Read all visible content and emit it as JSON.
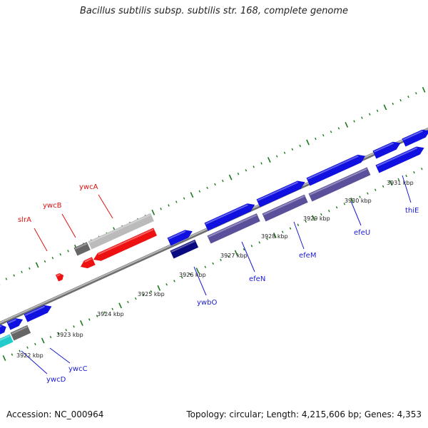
{
  "title": "Bacillus subtilis subsp. subtilis str. 168, complete genome",
  "footer": {
    "accession": "Accession: NC_000964",
    "topology": "Topology: circular; Length: 4,215,606 bp; Genes: 4,353"
  },
  "colors": {
    "backbone": "#8c8c8c",
    "tick": "#1a7a1a",
    "forward_gene": "#1010e0",
    "rRNA": "#ee1111",
    "pseudo": "#bbbbbb",
    "dark_gray": "#666666",
    "cyan": "#22cccc",
    "purple": "#5a4f9a",
    "navy": "#0a0a80",
    "red_label": "#dd1111",
    "blue_label": "#1a1ad0"
  },
  "scale_labels": [
    "3922 kbp",
    "3923 kbp",
    "3924 kbp",
    "3925 kbp",
    "3926 kbp",
    "3927 kbp",
    "3928 kbp",
    "3929 kbp",
    "3930 kbp",
    "3931 kbp"
  ],
  "gene_labels": [
    {
      "name": "slrA",
      "color": "red"
    },
    {
      "name": "ywcB",
      "color": "red"
    },
    {
      "name": "ywcA",
      "color": "red"
    },
    {
      "name": "ywbO",
      "color": "blue"
    },
    {
      "name": "efeN",
      "color": "blue"
    },
    {
      "name": "efeM",
      "color": "blue"
    },
    {
      "name": "efeU",
      "color": "blue"
    },
    {
      "name": "thiE",
      "color": "blue"
    },
    {
      "name": "ywcC",
      "color": "blue"
    },
    {
      "name": "ywcD",
      "color": "blue"
    }
  ]
}
